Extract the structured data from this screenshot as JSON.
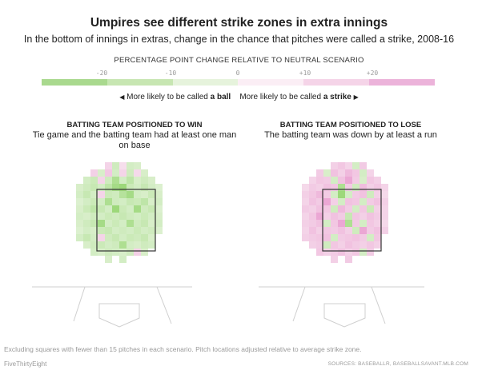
{
  "title": "Umpires see different strike zones in extra innings",
  "subtitle": "In the bottom of innings in extras, change in the chance that pitches were called a strike, 2008-16",
  "legend": {
    "title": "PERCENTAGE POINT CHANGE RELATIVE TO NEUTRAL SCENARIO",
    "ticks": [
      "-20",
      "-10",
      "0",
      "+10",
      "+20"
    ],
    "colors": [
      "#a9d98e",
      "#c7e6b2",
      "#e6f3dc",
      "#fbeef5",
      "#f5d4e8",
      "#ecb3da"
    ],
    "ball_text": "More likely to be called",
    "ball_bold": "a ball",
    "strike_text": "More likely to be called",
    "strike_bold": "a strike"
  },
  "chart_data": [
    {
      "type": "heatmap",
      "title": "BATTING TEAM POSITIONED TO WIN",
      "subtitle": "Tie game and the batting team had at least one man on base",
      "unit": "percentage point change",
      "columns": 12,
      "rows": 14,
      "strike_zone": {
        "col_start": 2,
        "col_end": 9,
        "row_start": 3,
        "row_end": 10
      },
      "values": [
        [
          null,
          null,
          null,
          null,
          2,
          -4,
          0,
          -3,
          -2,
          null,
          null,
          null
        ],
        [
          null,
          null,
          3,
          -2,
          5,
          -3,
          2,
          -4,
          1,
          -2,
          null,
          null
        ],
        [
          null,
          -3,
          -5,
          2,
          -4,
          -12,
          -3,
          -8,
          -2,
          -4,
          -2,
          null
        ],
        [
          -2,
          -4,
          -6,
          -3,
          -8,
          -14,
          -16,
          -5,
          -3,
          -6,
          -3,
          -1
        ],
        [
          -3,
          -6,
          -3,
          2,
          -5,
          -4,
          -10,
          -14,
          -3,
          -2,
          -5,
          -2
        ],
        [
          -1,
          -3,
          -5,
          -3,
          -12,
          -4,
          -3,
          -6,
          -5,
          -8,
          -2,
          -3
        ],
        [
          -2,
          -5,
          -8,
          -6,
          -3,
          -16,
          -5,
          -3,
          -14,
          -4,
          -6,
          -1
        ],
        [
          -3,
          -2,
          -4,
          -3,
          -5,
          -4,
          -6,
          -4,
          -3,
          -5,
          -3,
          -2
        ],
        [
          -2,
          -4,
          -6,
          -14,
          -3,
          -5,
          -3,
          -12,
          -4,
          -6,
          -2,
          -3
        ],
        [
          -1,
          -3,
          -2,
          -5,
          -6,
          -3,
          -4,
          -3,
          -5,
          -3,
          -4,
          -1
        ],
        [
          -3,
          -6,
          -3,
          2,
          -4,
          -6,
          -3,
          -5,
          -4,
          -6,
          -2,
          null
        ],
        [
          null,
          -2,
          -4,
          -5,
          -3,
          -4,
          -12,
          -3,
          -2,
          -4,
          -3,
          null
        ],
        [
          null,
          null,
          -3,
          -2,
          -4,
          -3,
          -2,
          -4,
          3,
          -2,
          null,
          null
        ],
        [
          null,
          null,
          null,
          null,
          -2,
          null,
          -3,
          null,
          null,
          null,
          null,
          null
        ]
      ]
    },
    {
      "type": "heatmap",
      "title": "BATTING TEAM POSITIONED TO LOSE",
      "subtitle": "The batting team was down by at least a run",
      "unit": "percentage point change",
      "columns": 12,
      "rows": 14,
      "strike_zone": {
        "col_start": 2,
        "col_end": 9,
        "row_start": 3,
        "row_end": 10
      },
      "values": [
        [
          null,
          null,
          null,
          null,
          3,
          5,
          2,
          -3,
          4,
          null,
          null,
          null
        ],
        [
          null,
          null,
          4,
          -2,
          6,
          3,
          8,
          5,
          -3,
          2,
          null,
          null
        ],
        [
          null,
          2,
          5,
          4,
          -3,
          6,
          12,
          4,
          -2,
          5,
          3,
          null
        ],
        [
          1,
          4,
          3,
          6,
          5,
          -12,
          4,
          -4,
          7,
          3,
          5,
          2
        ],
        [
          3,
          5,
          8,
          4,
          -3,
          -16,
          -3,
          4,
          6,
          -4,
          3,
          1
        ],
        [
          2,
          6,
          4,
          12,
          3,
          -3,
          6,
          5,
          -3,
          4,
          6,
          3
        ],
        [
          4,
          3,
          6,
          5,
          -4,
          8,
          4,
          -3,
          5,
          -5,
          3,
          2
        ],
        [
          2,
          5,
          12,
          3,
          6,
          4,
          -6,
          5,
          3,
          6,
          4,
          2
        ],
        [
          3,
          4,
          6,
          -3,
          5,
          12,
          -12,
          4,
          -3,
          5,
          3,
          1
        ],
        [
          2,
          6,
          3,
          5,
          4,
          6,
          3,
          -4,
          12,
          4,
          6,
          3
        ],
        [
          3,
          4,
          5,
          6,
          -3,
          4,
          5,
          6,
          4,
          -3,
          5,
          null
        ],
        [
          null,
          3,
          4,
          -4,
          5,
          3,
          6,
          4,
          3,
          5,
          3,
          null
        ],
        [
          null,
          null,
          5,
          3,
          4,
          6,
          3,
          5,
          -3,
          4,
          null,
          null
        ],
        [
          null,
          null,
          null,
          null,
          3,
          null,
          4,
          null,
          null,
          null,
          null,
          null
        ]
      ]
    }
  ],
  "footnote": "Excluding squares with fewer than 15 pitches in each scenario. Pitch locations adjusted relative to average strike zone.",
  "brand": "FiveThirtyEight",
  "sources": "SOURCES: BASEBALLR, BASEBALLSAVANT.MLB.COM"
}
